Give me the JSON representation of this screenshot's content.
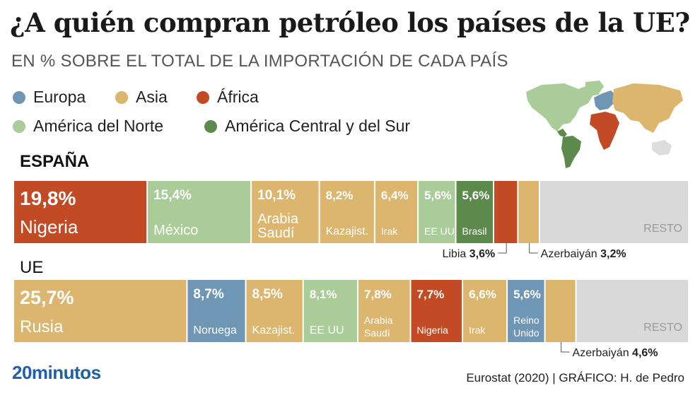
{
  "title": "¿A quién compran petróleo los países de la UE?",
  "subtitle": "EN % SOBRE EL TOTAL DE LA IMPORTACIÓN DE CADA PAÍS",
  "colors": {
    "europa": "#6f96b4",
    "asia": "#dcb56e",
    "africa": "#c24a24",
    "america_norte": "#a9cc98",
    "america_central_sur": "#5c8a4d",
    "resto": "#d9d9d9"
  },
  "legend": [
    {
      "label": "Europa",
      "color": "#6f96b4"
    },
    {
      "label": "Asia",
      "color": "#dcb56e"
    },
    {
      "label": "África",
      "color": "#c24a24"
    },
    {
      "label": "América del Norte",
      "color": "#a9cc98"
    },
    {
      "label": "América Central y del Sur",
      "color": "#5c8a4d"
    }
  ],
  "map_icon": "world-map-icon",
  "chart_data": [
    {
      "type": "bar",
      "orientation": "stacked-horizontal",
      "group": "ESPAÑA",
      "unit": "%",
      "segments": [
        {
          "label": "Nigeria",
          "value": 19.8,
          "value_label": "19,8%",
          "region": "África",
          "color": "#c24a24"
        },
        {
          "label": "México",
          "value": 15.4,
          "value_label": "15,4%",
          "region": "América del Norte",
          "color": "#a9cc98"
        },
        {
          "label": "Arabia Saudí",
          "value": 10.1,
          "value_label": "10,1%",
          "region": "Asia",
          "color": "#dcb56e"
        },
        {
          "label": "Kazajist.",
          "value": 8.2,
          "value_label": "8,2%",
          "region": "Asia",
          "color": "#dcb56e"
        },
        {
          "label": "Irak",
          "value": 6.4,
          "value_label": "6,4%",
          "region": "Asia",
          "color": "#dcb56e"
        },
        {
          "label": "EE UU",
          "value": 5.6,
          "value_label": "5,6%",
          "region": "América del Norte",
          "color": "#a9cc98"
        },
        {
          "label": "Brasil",
          "value": 5.6,
          "value_label": "5,6%",
          "region": "América Central y del Sur",
          "color": "#5c8a4d"
        },
        {
          "label": "Libia",
          "value": 3.6,
          "value_label": "3,6%",
          "region": "África",
          "color": "#c24a24",
          "callout": true
        },
        {
          "label": "Azerbaiyán",
          "value": 3.2,
          "value_label": "3,2%",
          "region": "Asia",
          "color": "#dcb56e",
          "callout": true
        },
        {
          "label": "RESTO",
          "value": 22.1,
          "value_label": "",
          "region": "Resto",
          "color": "#d9d9d9",
          "rest": true
        }
      ]
    },
    {
      "type": "bar",
      "orientation": "stacked-horizontal",
      "group": "UE",
      "unit": "%",
      "segments": [
        {
          "label": "Rusia",
          "value": 25.7,
          "value_label": "25,7%",
          "region": "Asia",
          "color": "#dcb56e"
        },
        {
          "label": "Noruega",
          "value": 8.7,
          "value_label": "8,7%",
          "region": "Europa",
          "color": "#6f96b4"
        },
        {
          "label": "Kazajist.",
          "value": 8.5,
          "value_label": "8,5%",
          "region": "Asia",
          "color": "#dcb56e"
        },
        {
          "label": "EE UU",
          "value": 8.1,
          "value_label": "8,1%",
          "region": "América del Norte",
          "color": "#a9cc98"
        },
        {
          "label": "Arabia Saudí",
          "value": 7.8,
          "value_label": "7,8%",
          "region": "Asia",
          "color": "#dcb56e"
        },
        {
          "label": "Nigeria",
          "value": 7.7,
          "value_label": "7,7%",
          "region": "África",
          "color": "#c24a24"
        },
        {
          "label": "Irak",
          "value": 6.6,
          "value_label": "6,6%",
          "region": "Asia",
          "color": "#dcb56e"
        },
        {
          "label": "Reino Unido",
          "value": 5.6,
          "value_label": "5,6%",
          "region": "Europa",
          "color": "#6f96b4"
        },
        {
          "label": "Azerbaiyán",
          "value": 4.6,
          "value_label": "4,6%",
          "region": "Asia",
          "color": "#dcb56e",
          "callout": true
        },
        {
          "label": "RESTO",
          "value": 16.7,
          "value_label": "",
          "region": "Resto",
          "color": "#d9d9d9",
          "rest": true
        }
      ]
    }
  ],
  "footer": {
    "logo": "20minutos",
    "source": "Eurostat (2020)  |  GRÁFICO: H. de Pedro"
  }
}
